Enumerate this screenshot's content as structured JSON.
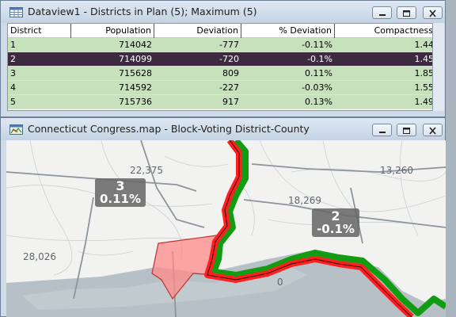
{
  "dataview": {
    "title": "Dataview1 - Districts in Plan (5); Maximum (5)",
    "columns": {
      "district": "District",
      "population": "Population",
      "deviation": "Deviation",
      "pct_deviation": "% Deviation",
      "compactness": "Compactness"
    },
    "rows": [
      {
        "district": "1",
        "population": "714042",
        "deviation": "-777",
        "pct_deviation": "-0.11%",
        "compactness": "1.44"
      },
      {
        "district": "2",
        "population": "714099",
        "deviation": "-720",
        "pct_deviation": "-0.1%",
        "compactness": "1.45"
      },
      {
        "district": "3",
        "population": "715628",
        "deviation": "809",
        "pct_deviation": "0.11%",
        "compactness": "1.85"
      },
      {
        "district": "4",
        "population": "714592",
        "deviation": "-227",
        "pct_deviation": "-0.03%",
        "compactness": "1.55"
      },
      {
        "district": "5",
        "population": "715736",
        "deviation": "917",
        "pct_deviation": "0.13%",
        "compactness": "1.49"
      }
    ],
    "selected_row": 2
  },
  "mapwindow": {
    "title": "Connecticut Congress.map - Block-Voting District-County",
    "labels": {
      "l1": "22,375",
      "l2": "13,260",
      "l3": "18,269",
      "l4": "28,026",
      "l5": "0"
    },
    "badges": {
      "d3": {
        "num": "3",
        "pct": "0.11%"
      },
      "d2": {
        "num": "2",
        "pct": "-0.1%"
      }
    }
  },
  "colors": {
    "selected_row": "#3d2940",
    "row_green": "#c8e1bd",
    "district_red": "#ff1f1f",
    "district_green": "#129c12",
    "water": "#b6c0c6"
  }
}
